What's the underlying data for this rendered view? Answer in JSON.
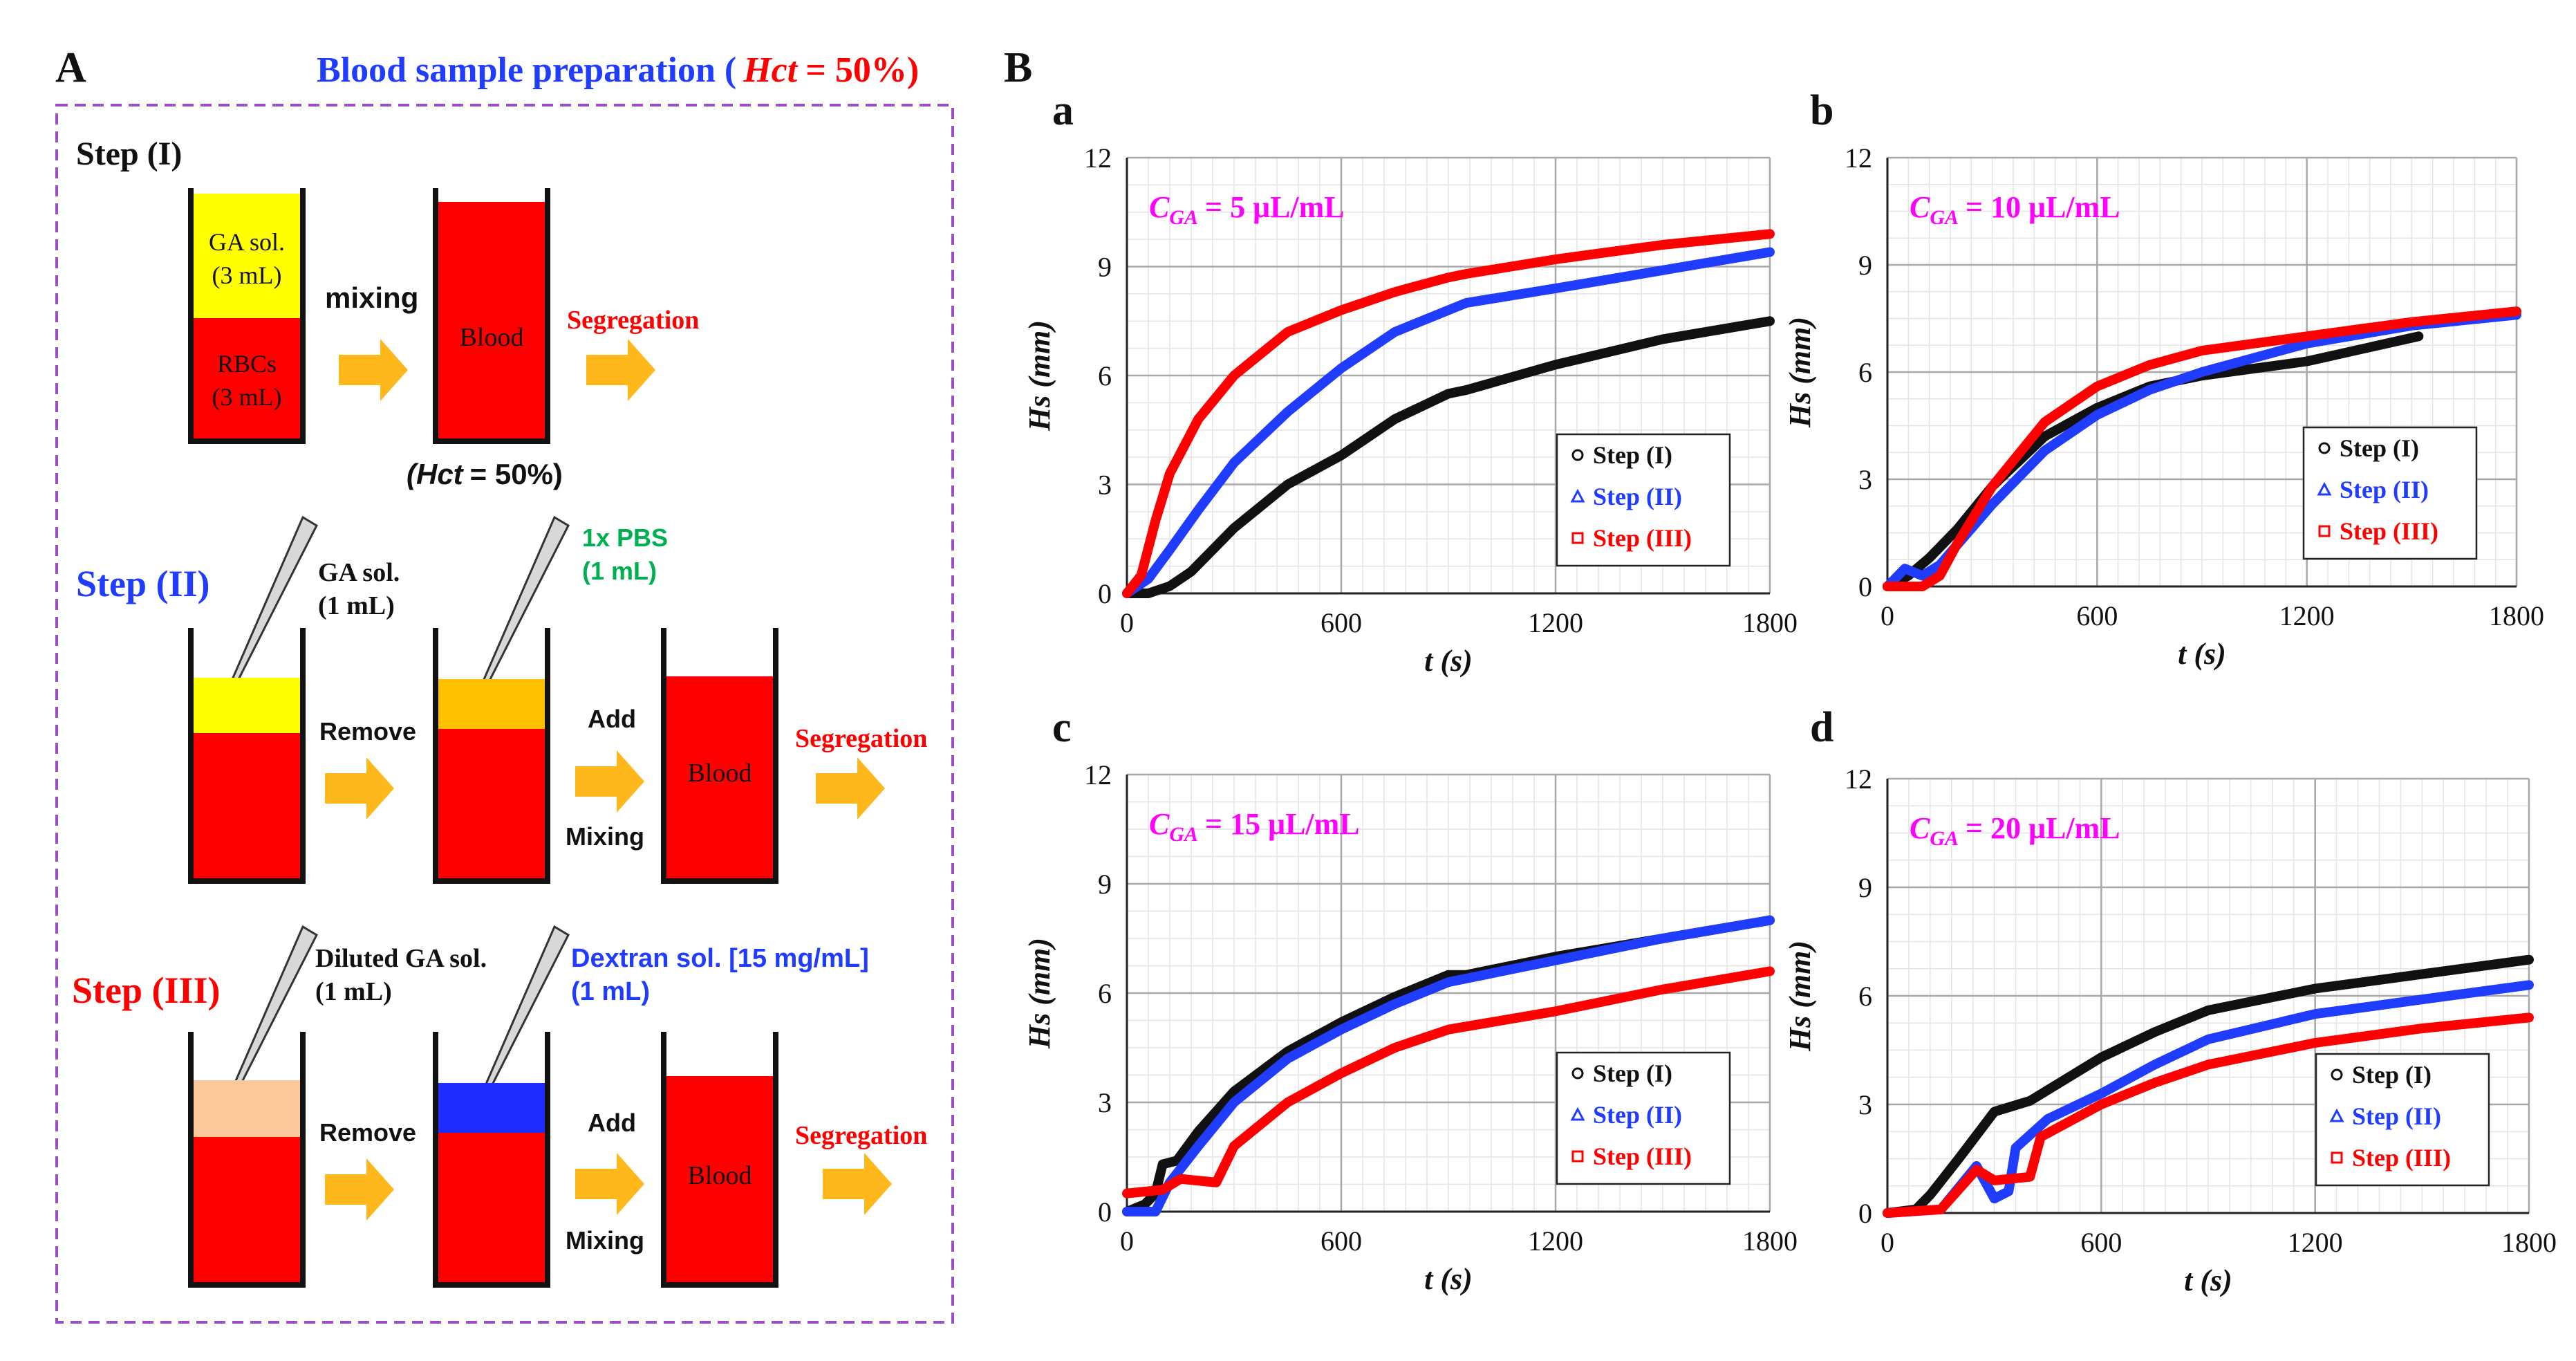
{
  "panel_a": {
    "letter": "A",
    "title_prefix": "Blood sample preparation (",
    "title_hct": "Hct",
    "title_suffix": "= 50%)",
    "step1": {
      "label": "Step (I)",
      "tube1_top": [
        "GA sol.",
        "(3 mL)"
      ],
      "tube1_bottom": [
        "RBCs",
        "(3 mL)"
      ],
      "mixing": "mixing",
      "blood": "Blood",
      "segregation": "Segregation",
      "hct_note_var": "(Hct",
      "hct_note_rest": "= 50%)"
    },
    "step2": {
      "label": "Step (II)",
      "pipette1": [
        "GA sol.",
        "(1 mL)"
      ],
      "pipette2": [
        "1x PBS",
        "(1 mL)"
      ],
      "remove": "Remove",
      "add": "Add",
      "mixing": "Mixing",
      "blood": "Blood",
      "segregation": "Segregation"
    },
    "step3": {
      "label": "Step (III)",
      "pipette1": [
        "Diluted GA sol.",
        "(1 mL)"
      ],
      "pipette2": [
        "Dextran sol. [15 mg/mL]",
        "(1 mL)"
      ],
      "remove": "Remove",
      "add": "Add",
      "mixing": "Mixing",
      "blood": "Blood",
      "segregation": "Segregation"
    }
  },
  "panel_b_letter": "B",
  "colors": {
    "red": "#ff0000",
    "blue": "#1f3cff",
    "black": "#111111",
    "magenta": "#ff00ff",
    "green": "#00b050",
    "orange": "#ffb81c",
    "yellow": "#ffff00",
    "peach": "#fac89a",
    "gold": "#ffc000"
  },
  "chart_data": [
    {
      "id": "a",
      "letter": "a",
      "type": "line",
      "annotation_var": "C",
      "annotation_sub": "GA",
      "annotation_rest": "= 5 μL/mL",
      "xlabel": "t (s)",
      "ylabel": "Hs (mm)",
      "xlim": [
        0,
        1800
      ],
      "ylim": [
        0,
        12
      ],
      "xticks": [
        0,
        600,
        1200,
        1800
      ],
      "yticks": [
        0,
        3,
        6,
        9,
        12
      ],
      "legend": [
        "Step (I)",
        "Step (II)",
        "Step (III)"
      ],
      "legend_position": "bottom-right",
      "series": [
        {
          "name": "Step (I)",
          "points": [
            [
              0,
              0
            ],
            [
              60,
              0
            ],
            [
              120,
              0.2
            ],
            [
              180,
              0.6
            ],
            [
              300,
              1.8
            ],
            [
              450,
              3.0
            ],
            [
              600,
              3.8
            ],
            [
              750,
              4.8
            ],
            [
              900,
              5.5
            ],
            [
              950,
              5.6
            ],
            [
              1200,
              6.3
            ],
            [
              1500,
              7.0
            ],
            [
              1800,
              7.5
            ]
          ]
        },
        {
          "name": "Step (II)",
          "points": [
            [
              0,
              0
            ],
            [
              60,
              0.4
            ],
            [
              120,
              1.2
            ],
            [
              200,
              2.3
            ],
            [
              300,
              3.6
            ],
            [
              450,
              5.0
            ],
            [
              600,
              6.2
            ],
            [
              750,
              7.2
            ],
            [
              900,
              7.8
            ],
            [
              950,
              8.0
            ],
            [
              1200,
              8.4
            ],
            [
              1500,
              8.9
            ],
            [
              1800,
              9.4
            ]
          ]
        },
        {
          "name": "Step (III)",
          "points": [
            [
              0,
              0
            ],
            [
              40,
              0.5
            ],
            [
              80,
              2.0
            ],
            [
              120,
              3.3
            ],
            [
              200,
              4.8
            ],
            [
              300,
              6.0
            ],
            [
              450,
              7.2
            ],
            [
              600,
              7.8
            ],
            [
              750,
              8.3
            ],
            [
              900,
              8.7
            ],
            [
              950,
              8.8
            ],
            [
              1200,
              9.2
            ],
            [
              1500,
              9.6
            ],
            [
              1800,
              9.9
            ]
          ]
        }
      ]
    },
    {
      "id": "b",
      "letter": "b",
      "type": "line",
      "annotation_var": "C",
      "annotation_sub": "GA",
      "annotation_rest": "= 10 μL/mL",
      "xlabel": "t (s)",
      "ylabel": "Hs (mm)",
      "xlim": [
        0,
        1800
      ],
      "ylim": [
        0,
        12
      ],
      "xticks": [
        0,
        600,
        1200,
        1800
      ],
      "yticks": [
        0,
        3,
        6,
        9,
        12
      ],
      "legend": [
        "Step (I)",
        "Step (II)",
        "Step (III)"
      ],
      "legend_position": "bottom-right",
      "series": [
        {
          "name": "Step (I)",
          "points": [
            [
              0,
              0
            ],
            [
              60,
              0.3
            ],
            [
              120,
              0.8
            ],
            [
              200,
              1.6
            ],
            [
              300,
              2.8
            ],
            [
              450,
              4.2
            ],
            [
              600,
              5.0
            ],
            [
              750,
              5.6
            ],
            [
              900,
              5.9
            ],
            [
              1200,
              6.3
            ],
            [
              1520,
              7.0
            ]
          ]
        },
        {
          "name": "Step (II)",
          "points": [
            [
              0,
              0
            ],
            [
              50,
              0.5
            ],
            [
              100,
              0.3
            ],
            [
              150,
              0.6
            ],
            [
              300,
              2.3
            ],
            [
              450,
              3.8
            ],
            [
              600,
              4.8
            ],
            [
              750,
              5.5
            ],
            [
              900,
              6.0
            ],
            [
              1200,
              6.8
            ],
            [
              1500,
              7.3
            ],
            [
              1800,
              7.6
            ]
          ]
        },
        {
          "name": "Step (III)",
          "points": [
            [
              0,
              0
            ],
            [
              100,
              0
            ],
            [
              150,
              0.3
            ],
            [
              200,
              1.2
            ],
            [
              300,
              2.8
            ],
            [
              450,
              4.6
            ],
            [
              600,
              5.6
            ],
            [
              750,
              6.2
            ],
            [
              900,
              6.6
            ],
            [
              1200,
              7.0
            ],
            [
              1500,
              7.4
            ],
            [
              1800,
              7.7
            ]
          ]
        }
      ]
    },
    {
      "id": "c",
      "letter": "c",
      "type": "line",
      "annotation_var": "C",
      "annotation_sub": "GA",
      "annotation_rest": "= 15 μL/mL",
      "xlabel": "t (s)",
      "ylabel": "Hs (mm)",
      "xlim": [
        0,
        1800
      ],
      "ylim": [
        0,
        12
      ],
      "xticks": [
        0,
        600,
        1200,
        1800
      ],
      "yticks": [
        0,
        3,
        6,
        9,
        12
      ],
      "legend": [
        "Step (I)",
        "Step (II)",
        "Step (III)"
      ],
      "legend_position": "bottom-right",
      "series": [
        {
          "name": "Step (I)",
          "points": [
            [
              0,
              0
            ],
            [
              50,
              0.2
            ],
            [
              80,
              0.5
            ],
            [
              100,
              1.3
            ],
            [
              140,
              1.4
            ],
            [
              200,
              2.2
            ],
            [
              300,
              3.3
            ],
            [
              450,
              4.4
            ],
            [
              600,
              5.2
            ],
            [
              750,
              5.9
            ],
            [
              900,
              6.5
            ],
            [
              950,
              6.5
            ],
            [
              1200,
              7.0
            ],
            [
              1500,
              7.5
            ],
            [
              1800,
              8.0
            ]
          ]
        },
        {
          "name": "Step (II)",
          "points": [
            [
              0,
              0
            ],
            [
              80,
              0
            ],
            [
              120,
              0.8
            ],
            [
              200,
              1.8
            ],
            [
              300,
              3.0
            ],
            [
              450,
              4.2
            ],
            [
              600,
              5.0
            ],
            [
              750,
              5.7
            ],
            [
              900,
              6.3
            ],
            [
              1200,
              6.9
            ],
            [
              1500,
              7.5
            ],
            [
              1800,
              8.0
            ]
          ]
        },
        {
          "name": "Step (III)",
          "points": [
            [
              0,
              0.5
            ],
            [
              100,
              0.6
            ],
            [
              150,
              0.9
            ],
            [
              250,
              0.8
            ],
            [
              300,
              1.8
            ],
            [
              450,
              3.0
            ],
            [
              600,
              3.8
            ],
            [
              750,
              4.5
            ],
            [
              900,
              5.0
            ],
            [
              1200,
              5.5
            ],
            [
              1500,
              6.1
            ],
            [
              1800,
              6.6
            ]
          ]
        }
      ]
    },
    {
      "id": "d",
      "letter": "d",
      "type": "line",
      "annotation_var": "C",
      "annotation_sub": "GA",
      "annotation_rest": "= 20 μL/mL",
      "xlabel": "t (s)",
      "ylabel": "Hs (mm)",
      "xlim": [
        0,
        1800
      ],
      "ylim": [
        0,
        12
      ],
      "xticks": [
        0,
        600,
        1200,
        1800
      ],
      "yticks": [
        0,
        3,
        6,
        9,
        12
      ],
      "legend": [
        "Step (I)",
        "Step (II)",
        "Step (III)"
      ],
      "legend_position": "bottom-right",
      "series": [
        {
          "name": "Step (I)",
          "points": [
            [
              0,
              0
            ],
            [
              80,
              0.1
            ],
            [
              120,
              0.5
            ],
            [
              200,
              1.5
            ],
            [
              300,
              2.8
            ],
            [
              400,
              3.1
            ],
            [
              600,
              4.3
            ],
            [
              750,
              5.0
            ],
            [
              900,
              5.6
            ],
            [
              1200,
              6.2
            ],
            [
              1500,
              6.6
            ],
            [
              1800,
              7.0
            ]
          ]
        },
        {
          "name": "Step (II)",
          "points": [
            [
              0,
              0
            ],
            [
              150,
              0.1
            ],
            [
              250,
              1.3
            ],
            [
              300,
              0.4
            ],
            [
              340,
              0.6
            ],
            [
              360,
              1.8
            ],
            [
              450,
              2.6
            ],
            [
              600,
              3.3
            ],
            [
              750,
              4.1
            ],
            [
              900,
              4.8
            ],
            [
              1200,
              5.5
            ],
            [
              1500,
              5.9
            ],
            [
              1800,
              6.3
            ]
          ]
        },
        {
          "name": "Step (III)",
          "points": [
            [
              0,
              0
            ],
            [
              150,
              0.1
            ],
            [
              250,
              1.2
            ],
            [
              300,
              0.9
            ],
            [
              400,
              1.0
            ],
            [
              430,
              2.1
            ],
            [
              600,
              3.0
            ],
            [
              750,
              3.6
            ],
            [
              900,
              4.1
            ],
            [
              1200,
              4.7
            ],
            [
              1500,
              5.1
            ],
            [
              1800,
              5.4
            ]
          ]
        }
      ]
    }
  ]
}
